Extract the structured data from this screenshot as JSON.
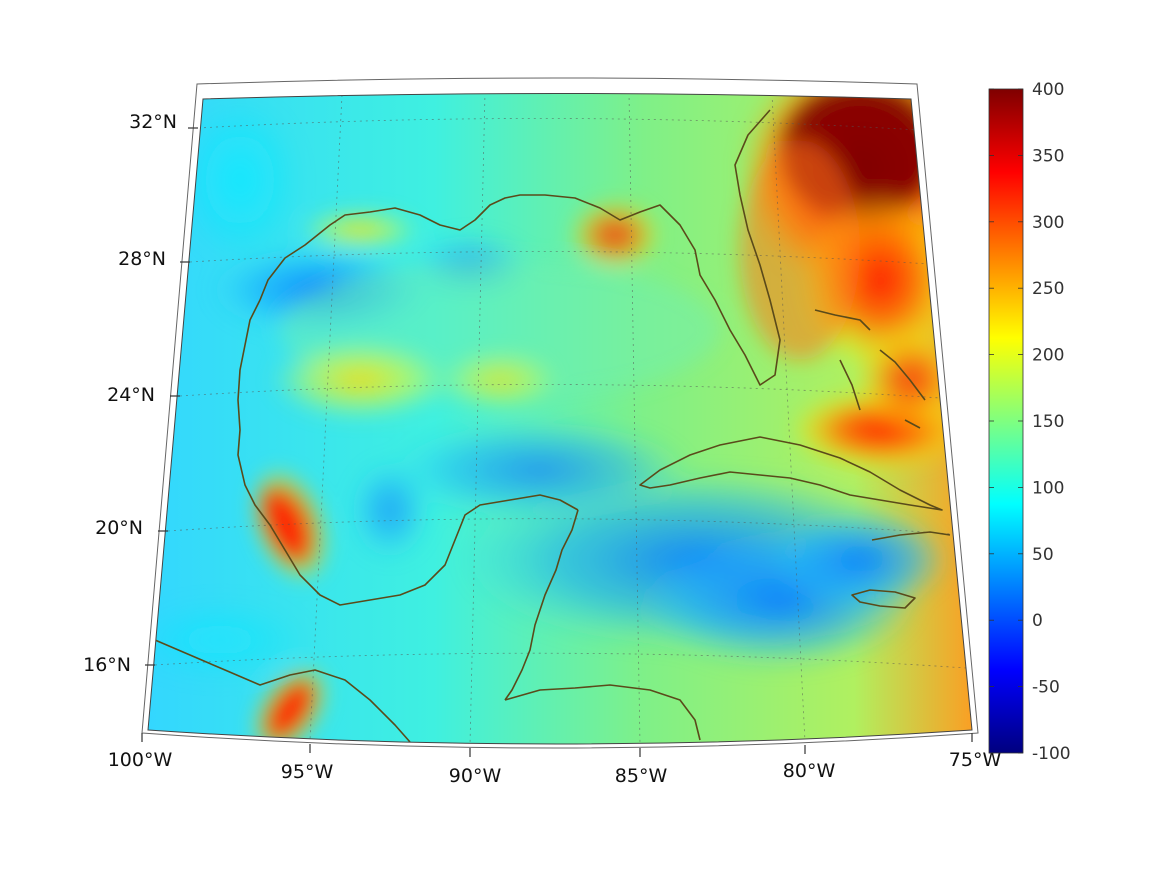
{
  "map": {
    "projection": "conic (Lambert-like)",
    "region": "Gulf of Mexico and Caribbean",
    "lon_range": [
      -100,
      -75
    ],
    "lat_range": [
      14,
      33
    ],
    "longitude_labels": [
      "100°W",
      "95°W",
      "90°W",
      "85°W",
      "80°W",
      "75°W"
    ],
    "latitude_labels": [
      "16°N",
      "20°N",
      "24°N",
      "28°N",
      "32°N"
    ],
    "gridlines": true,
    "gridline_style": "dotted",
    "coastline_color": "#5a4a1a"
  },
  "colorbar": {
    "colormap": "jet",
    "limits": [
      -100,
      400
    ],
    "ticks": [
      "400",
      "350",
      "300",
      "250",
      "200",
      "150",
      "100",
      "50",
      "0",
      "-50",
      "-100"
    ],
    "placement": "right"
  },
  "field_features": [
    {
      "area": "Atlantic off Georgia/Carolinas",
      "level": "max ~400"
    },
    {
      "area": "Florida Straits / Bahamas",
      "level": "~250-330"
    },
    {
      "area": "Bay of Campeche (Veracruz coast)",
      "level": "~300-350"
    },
    {
      "area": "Gulf of Tehuantepec",
      "level": "~300-350"
    },
    {
      "area": "Caribbean Sea / Yucatan Channel",
      "level": "~0-80"
    },
    {
      "area": "Texas shelf",
      "level": "~30-60"
    }
  ]
}
